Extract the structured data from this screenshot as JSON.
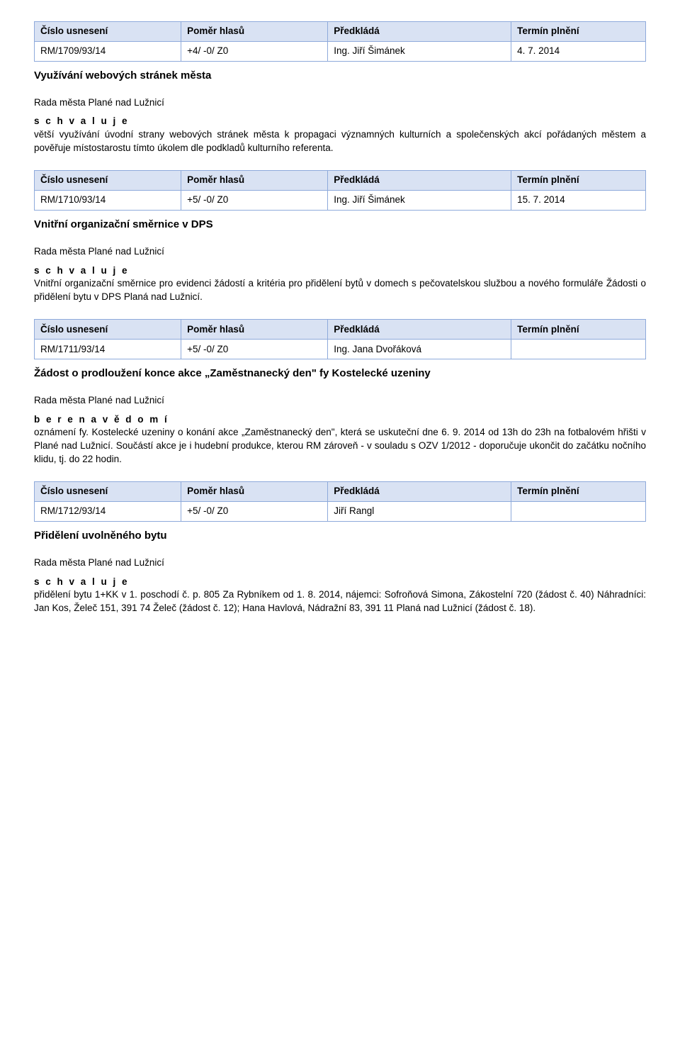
{
  "headers": {
    "resolution_no": "Číslo usnesení",
    "vote_ratio": "Poměr hlasů",
    "presented_by": "Předkládá",
    "deadline": "Termín plnění"
  },
  "council_line": "Rada města Plané nad Lužnicí",
  "actions": {
    "approves": "s c h v a l u j e",
    "notes": "b e r e  n a  v ě d o m í"
  },
  "r1": {
    "no": "RM/1709/93/14",
    "ratio": "+4/ -0/ Z0",
    "presenter": "Ing. Jiří Šimánek",
    "deadline": "4. 7. 2014",
    "title": "Využívání webových stránek města",
    "text": "větší využívání úvodní strany webových stránek města k propagaci významných kulturních a společenských akcí pořádaných městem a pověřuje místostarostu tímto úkolem dle podkladů kulturního referenta."
  },
  "r2": {
    "no": "RM/1710/93/14",
    "ratio": "+5/ -0/ Z0",
    "presenter": "Ing. Jiří Šimánek",
    "deadline": "15. 7. 2014",
    "title": "Vnitřní organizační směrnice v DPS",
    "text": "Vnitřní organizační směrnice pro evidenci žádostí a kritéria pro přidělení bytů v domech s pečovatelskou službou a nového formuláře Žádosti o přidělení bytu v DPS Planá nad Lužnicí."
  },
  "r3": {
    "no": "RM/1711/93/14",
    "ratio": "+5/ -0/ Z0",
    "presenter": "Ing. Jana Dvořáková",
    "deadline": "",
    "title": "Žádost o prodloužení konce akce „Zaměstnanecký den\" fy Kostelecké uzeniny",
    "text": "oznámení fy. Kostelecké uzeniny o konání akce „Zaměstnanecký den\", která se uskuteční dne 6. 9. 2014 od 13h do 23h na fotbalovém hřišti v Plané nad Lužnicí. Součástí akce je i hudební produkce, kterou RM zároveň - v souladu s OZV 1/2012 - doporučuje ukončit do začátku nočního klidu, tj. do 22 hodin."
  },
  "r4": {
    "no": "RM/1712/93/14",
    "ratio": "+5/ -0/ Z0",
    "presenter": "Jiří Rangl",
    "deadline": "",
    "title": "Přidělení uvolněného bytu",
    "text": "přidělení bytu 1+KK v 1. poschodí č. p. 805 Za Rybníkem od 1. 8. 2014, nájemci: Sofroňová Simona, Zákostelní 720 (žádost č. 40) Náhradníci: Jan Kos, Želeč 151, 391 74 Želeč (žádost č. 12); Hana Havlová, Nádražní 83, 391 11 Planá nad Lužnicí (žádost č. 18)."
  }
}
